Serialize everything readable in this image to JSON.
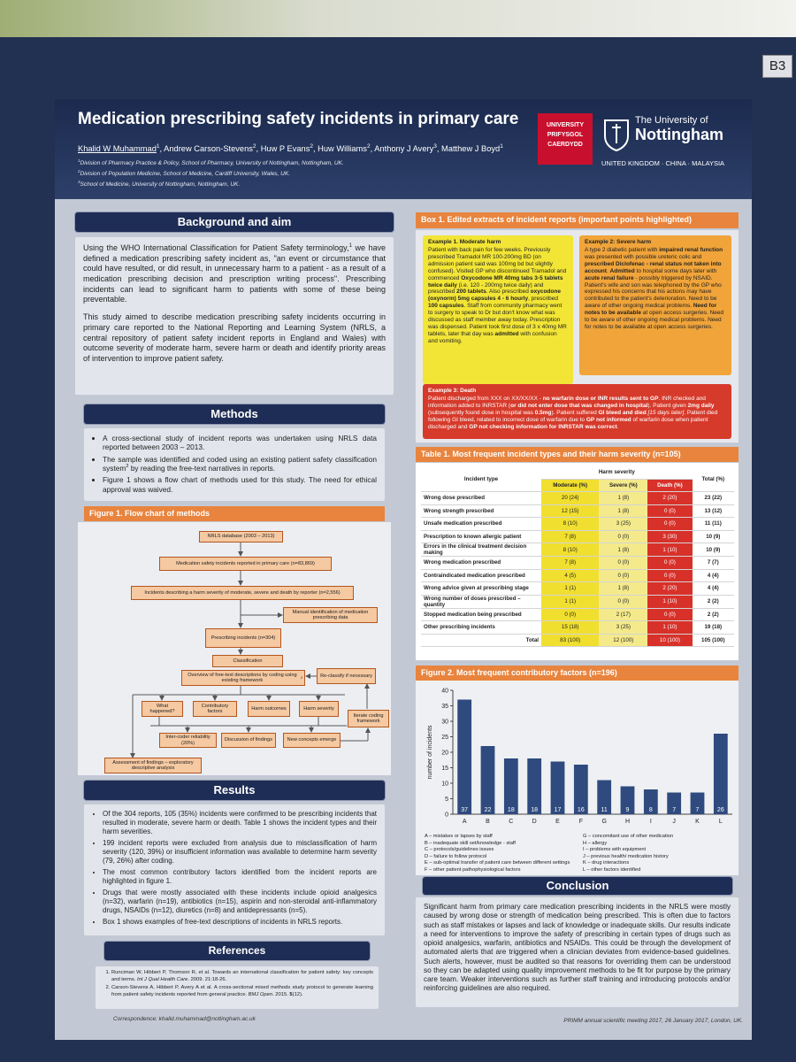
{
  "board_label": "B3",
  "header": {
    "title": "Medication prescribing safety incidents in primary care",
    "authors": [
      {
        "name": "Khalid W Muhammad",
        "sup": "1"
      },
      {
        "name": "Andrew Carson-Stevens",
        "sup": "2"
      },
      {
        "name": "Huw P Evans",
        "sup": "2"
      },
      {
        "name": "Huw Williams",
        "sup": "2"
      },
      {
        "name": "Anthony J Avery",
        "sup": "3"
      },
      {
        "name": "Matthew J Boyd",
        "sup": "1"
      }
    ],
    "author_separator": ", ",
    "affiliations": [
      {
        "sup": "1",
        "text": "Division of Pharmacy Practice & Policy, School of Pharmacy, University of Nottingham, Nottingham, UK."
      },
      {
        "sup": "2",
        "text": "Division of Population Medicine, School of Medicine, Cardiff University, Wales, UK."
      },
      {
        "sup": "3",
        "text": "School of Medicine, University of Nottingham, Nottingham, UK."
      }
    ],
    "cardiff_logo": [
      "UNIVERSITY",
      "PRIFYSGOL",
      "CAERDYDD"
    ],
    "nottingham_logo": [
      "The University of",
      "Nottingham"
    ],
    "nottingham_tagline": "UNITED KINGDOM · CHINA · MALAYSIA"
  },
  "background": {
    "heading": "Background and aim",
    "paragraphs": [
      [
        {
          "t": "Using the WHO International Classification for Patient Safety terminology,"
        },
        {
          "sup": "1"
        },
        {
          "t": " we have defined a medication prescribing safety incident as, \"an event or circumstance that could have resulted, or did result, in unnecessary harm to a patient - as a result of a medication prescribing decision and prescription writing process\". Prescribing incidents can lead to significant harm to patients with some of these being preventable."
        }
      ],
      [
        {
          "t": "This study aimed to describe medication prescribing safety incidents occurring in primary care reported to the National Reporting and Learning System (NRLS, a central repository of patient safety incident reports in England and Wales) with outcome severity of moderate harm, severe harm or death and identify priority areas of intervention to improve patient safety."
        }
      ]
    ]
  },
  "methods": {
    "heading": "Methods",
    "bullets": [
      [
        {
          "t": "A cross-sectional study of incident reports was undertaken using NRLS data reported between 2003 – 2013."
        }
      ],
      [
        {
          "t": "The sample was identified and coded using an existing patient safety classification system"
        },
        {
          "sup": "2"
        },
        {
          "t": " by reading the free-text narratives in reports."
        }
      ],
      [
        {
          "t": "Figure 1 shows a flow chart of methods used for this study. The need for ethical approval was waived."
        }
      ]
    ]
  },
  "figure1": {
    "title": "Figure 1. Flow chart of methods",
    "nodes": [
      [
        {
          "t": "NRLS database (2003 – 2013)"
        }
      ],
      [
        {
          "t": "Medication safety incidents reported in primary care (n=83,869)"
        }
      ],
      [
        {
          "t": "Incidents describing a harm severity of moderate, severe and death by reporter (n=2,556)"
        }
      ],
      [
        {
          "t": "Manual identification of medication prescribing data"
        }
      ],
      [
        {
          "t": "Prescribing incidents (n=304)"
        }
      ],
      [
        {
          "t": "Classification"
        }
      ],
      [
        {
          "t": "Overview of free-text descriptions by coding using existing framework"
        },
        {
          "sup": "2"
        }
      ],
      [
        {
          "t": "Re-classify if necessary"
        }
      ],
      [
        {
          "t": "What happened?"
        }
      ],
      [
        {
          "t": "Contributory factors"
        }
      ],
      [
        {
          "t": "Harm outcomes"
        }
      ],
      [
        {
          "t": "Harm severity"
        }
      ],
      [
        {
          "t": "Iterate coding framework"
        }
      ],
      [
        {
          "t": "Inter-coder reliability (20%)"
        }
      ],
      [
        {
          "t": "Discussion of findings"
        }
      ],
      [
        {
          "t": "New concepts emerge"
        }
      ],
      [
        {
          "t": "Assessment of findings – exploratory descriptive analysis"
        }
      ]
    ]
  },
  "results": {
    "heading": "Results",
    "bullets": [
      [
        {
          "t": "Of the 304 reports, 105 (35%) incidents were confirmed to be prescribing incidents that resulted in moderate, severe harm or death. Table 1 shows the incident types and their harm severities."
        }
      ],
      [
        {
          "t": "199 incident reports were excluded from analysis due to misclassification of harm severity (120, 39%) or insufficient information was available to determine harm severity (79, 26%) after coding."
        }
      ],
      [
        {
          "t": "The most common contributory factors identified from the incident reports are highlighted in figure 1."
        }
      ],
      [
        {
          "t": "Drugs that were mostly associated with these incidents include opioid analgesics (n=32), warfarin (n=19), antibiotics (n=15), aspirin and non-steroidal anti-inflammatory drugs, NSAIDs (n=12), diuretics (n=8) and antidepressants (n=5)."
        }
      ],
      [
        {
          "t": "Box 1 shows examples of free-text descriptions of incidents in NRLS reports."
        }
      ]
    ]
  },
  "references": {
    "heading": "References",
    "items": [
      [
        {
          "t": "Runciman W, Hibbert P, Thomson R, et al. Towards an international classification for patient safety: key concepts and terms. "
        },
        {
          "i": "Int J Qual Health Care"
        },
        {
          "t": ". 2009. 21:18-26."
        }
      ],
      [
        {
          "t": "Carson-Stevens A, Hibbert P, Avery A et al. A cross-sectional mixed methods study protocol to generate learning from patient safety incidents reported from general practice. "
        },
        {
          "i": "BMJ Open"
        },
        {
          "t": ". 2015. "
        },
        {
          "b": "5"
        },
        {
          "t": "(12)."
        }
      ]
    ],
    "correspondence": "Correspondence: khalid.muhammad@nottingham.ac.uk"
  },
  "box1": {
    "title": "Box 1. Edited extracts of incident reports (important points highlighted)",
    "examples": [
      {
        "title": "Example 1. Moderate harm",
        "text": [
          {
            "t": "Patient with back pain for few weeks. Previously prescribed Tramadol MR 100-200mg BD (on admission patient said was 100mg bd but slightly confused). Visited GP who discontinued Tramadol and commenced "
          },
          {
            "b": "Oxycodone MR 40mg tabs 3-5 tablets twice daily"
          },
          {
            "t": " (i.e. 120 - 200mg twice daily) and prescribed "
          },
          {
            "b": "200 tablets"
          },
          {
            "t": ". Also prescribed "
          },
          {
            "b": "oxycodone (oxynorm) 5mg capsules 4 - 6 hourly"
          },
          {
            "t": ", prescribed "
          },
          {
            "b": "100 capsules"
          },
          {
            "t": ". Staff from community pharmacy went to surgery to speak to Dr but don't know what was discussed as staff member away today. Prescription was dispensed. Patient took first dose of 3 x 40mg MR tablets, later that day was "
          },
          {
            "b": "admitted"
          },
          {
            "t": " with confusion and vomiting."
          }
        ]
      },
      {
        "title": "Example 2: Severe harm",
        "text": [
          {
            "t": "A type 2 diabetic patient with "
          },
          {
            "b": "impaired renal function"
          },
          {
            "t": " was presented with possible ureteric colic and "
          },
          {
            "b": "prescribed Diclofenac - renal status not taken into account"
          },
          {
            "t": ". "
          },
          {
            "b": "Admitted"
          },
          {
            "t": " to hospital some days later with "
          },
          {
            "b": "acute renal failure"
          },
          {
            "t": " - possibly triggered by NSAID. Patient's wife and son was telephoned by the GP who expressed his concerns that his actions may have contributed to the patient's deterioration. Need to be aware of other ongoing medical problems. "
          },
          {
            "b": "Need for notes to be available"
          },
          {
            "t": " at open access surgeries. Need to be aware of other ongoing medical problems. Need for notes to be available at open access surgeries."
          }
        ]
      },
      {
        "title": "Example 3: Death",
        "text": [
          {
            "t": "Patient discharged from XXX on XX/XX/XX - "
          },
          {
            "b": "no warfarin dose or INR results sent to GP"
          },
          {
            "t": ". INR checked and information added to INRSTAR ("
          },
          {
            "b": "or did not enter dose that was changed in hospital"
          },
          {
            "t": "). Patient given "
          },
          {
            "b": "2mg daily"
          },
          {
            "t": " (subsequently found dose in hospital was "
          },
          {
            "b": "0.5mg"
          },
          {
            "t": "). Patient suffered "
          },
          {
            "b": "GI bleed and died "
          },
          {
            "i": "[15 days later]"
          },
          {
            "t": ". Patient died following GI bleed, related to incorrect dose of warfarin due to "
          },
          {
            "b": "GP not informed"
          },
          {
            "t": " of warfarin dose when patient discharged and "
          },
          {
            "b": "GP not checking information for INRSTAR was correct"
          },
          {
            "t": "."
          }
        ]
      }
    ]
  },
  "table1": {
    "title": "Table 1. Most frequent incident types and their harm severity (n=105)",
    "incident_type": "Incident type",
    "harm_severity": "Harm severity",
    "columns": [
      "Moderate (%)",
      "Severe (%)",
      "Death (%)"
    ],
    "total_column": "Total (%)",
    "rows": [
      [
        "Wrong dose prescribed",
        "20 (24)",
        "1 (8)",
        "2 (20)",
        "23 (22)"
      ],
      [
        "Wrong strength prescribed",
        "12 (15)",
        "1 (8)",
        "0 (0)",
        "13 (12)"
      ],
      [
        "Unsafe medication prescribed",
        "8 (10)",
        "3 (25)",
        "0 (0)",
        "11 (11)"
      ],
      [
        "Prescription to known allergic patient",
        "7 (8)",
        "0 (0)",
        "3 (30)",
        "10 (9)"
      ],
      [
        "Errors in the clinical treatment decision making",
        "8 (10)",
        "1 (8)",
        "1 (10)",
        "10 (9)"
      ],
      [
        "Wrong medication prescribed",
        "7 (8)",
        "0 (0)",
        "0 (0)",
        "7 (7)"
      ],
      [
        "Contraindicated medication prescribed",
        "4 (5)",
        "0 (0)",
        "0 (0)",
        "4 (4)"
      ],
      [
        "Wrong advice given at prescribing stage",
        "1 (1)",
        "1 (8)",
        "2 (20)",
        "4 (4)"
      ],
      [
        "Wrong number of doses prescribed – quantity",
        "1 (1)",
        "0 (0)",
        "1 (10)",
        "2 (2)"
      ],
      [
        "Stopped medication being prescribed",
        "0 (0)",
        "2 (17)",
        "0 (0)",
        "2 (2)"
      ],
      [
        "Other prescribing incidents",
        "15 (18)",
        "3 (25)",
        "1 (10)",
        "19 (18)"
      ],
      [
        "Total",
        "83 (100)",
        "12 (100)",
        "10 (100)",
        "105 (100)"
      ]
    ]
  },
  "chart_data": {
    "type": "bar",
    "title": "Figure 2. Most frequent contributory factors (n=196)",
    "ylabel": "number of incidents",
    "categories": [
      "A",
      "B",
      "C",
      "D",
      "E",
      "F",
      "G",
      "H",
      "I",
      "J",
      "K",
      "L"
    ],
    "values": [
      37,
      22,
      18,
      18,
      17,
      16,
      11,
      9,
      8,
      7,
      7,
      26
    ],
    "color": "#2f4a7e",
    "ylim": [
      0,
      40
    ],
    "yticks": [
      0,
      5,
      10,
      15,
      20,
      25,
      30,
      35,
      40
    ],
    "factor_key": [
      "A – mistakes or lapses by staff",
      "B – inadequate skill set/knowledge - staff",
      "C – protocols/guidelines issues",
      "D – failure to follow protocol",
      "E – sub-optimal transfer of patient care between different settings",
      "F – other patient pathophysiological factors",
      "G – concomitant use of other medication",
      "H – allergy",
      "I – problems with equipment",
      "J – previous health/ medication history",
      "K – drug interactions",
      "L – other factors identified"
    ]
  },
  "conclusion": {
    "heading": "Conclusion",
    "text": [
      {
        "t": "Significant harm from primary care medication prescribing incidents in the NRLS were mostly caused by wrong dose or strength of medication being prescribed. This is often due to factors such as staff mistakes or lapses and lack of knowledge or inadequate skills. Our results indicate a need for interventions to improve the safety of prescribing in certain types of drugs such as opioid analgesics, warfarin, antibiotics and NSAIDs. This could be through the development of automated alerts that are triggered when a clinician deviates from evidence-based guidelines. Such alerts, however, must be audited so that reasons for overriding them can be understood so they can be adapted using quality improvement methods to be fit for purpose by the primary care team. Weaker interventions such as further staff training and introducing protocols and/or reinforcing guidelines are also required."
      }
    ]
  },
  "footer": "PRIMM annual scientific meeting 2017,  26 January 2017, London, UK."
}
